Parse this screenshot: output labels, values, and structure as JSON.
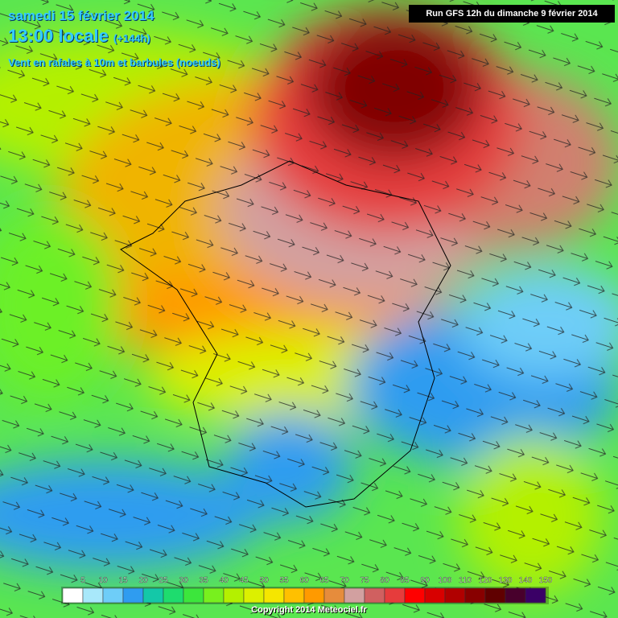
{
  "header": {
    "date": "samedi 15 février 2014",
    "time": "13:00 locale",
    "lead": "(+144h)",
    "subtitle": "Vent en rafales à 10m et barbules (noeuds)",
    "run": "Run GFS 12h du dimanche 9 février 2014"
  },
  "legend": {
    "items": [
      {
        "label": "5",
        "color": "#ffffff"
      },
      {
        "label": "10",
        "color": "#a8e8fa"
      },
      {
        "label": "15",
        "color": "#6ecdf8"
      },
      {
        "label": "20",
        "color": "#2f9cf0"
      },
      {
        "label": "25",
        "color": "#14c8a8"
      },
      {
        "label": "30",
        "color": "#1edc6e"
      },
      {
        "label": "35",
        "color": "#3ce63c"
      },
      {
        "label": "40",
        "color": "#78f01e"
      },
      {
        "label": "45",
        "color": "#b4f000"
      },
      {
        "label": "50",
        "color": "#dcf000"
      },
      {
        "label": "55",
        "color": "#f5e600"
      },
      {
        "label": "60",
        "color": "#ffc000"
      },
      {
        "label": "65",
        "color": "#ff9a00"
      },
      {
        "label": "70",
        "color": "#e68c3c"
      },
      {
        "label": "75",
        "color": "#d2a0a0"
      },
      {
        "label": "80",
        "color": "#d06060"
      },
      {
        "label": "85",
        "color": "#e63c3c"
      },
      {
        "label": "90",
        "color": "#ff0000"
      },
      {
        "label": "100",
        "color": "#d80000"
      },
      {
        "label": "110",
        "color": "#b00000"
      },
      {
        "label": "120",
        "color": "#880000"
      },
      {
        "label": "130",
        "color": "#600000"
      },
      {
        "label": "140",
        "color": "#48002c"
      },
      {
        "label": "150",
        "color": "#3a0066"
      }
    ]
  },
  "footer": {
    "copyright": "Copyright 2014 Meteociel.fr"
  }
}
